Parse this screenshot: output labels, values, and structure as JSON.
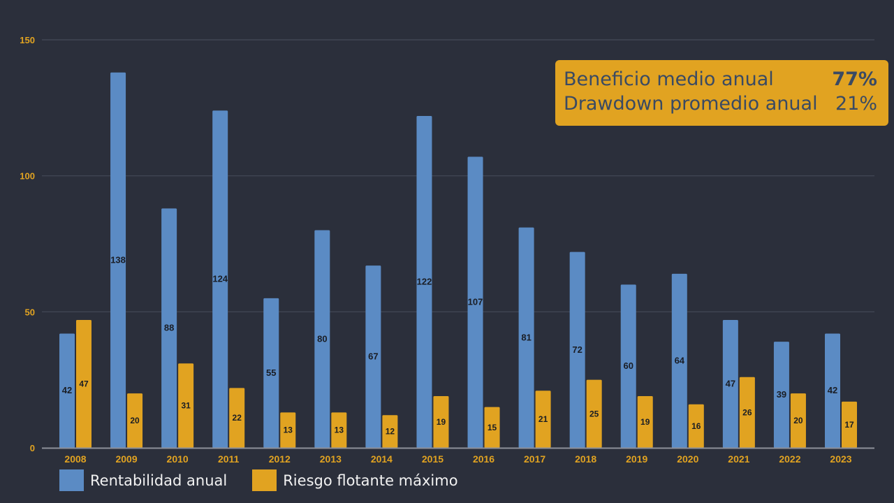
{
  "chart_data": {
    "type": "bar",
    "title": "",
    "xlabel": "",
    "ylabel": "",
    "ylim": [
      0,
      150
    ],
    "yticks": [
      0,
      50,
      100,
      150
    ],
    "grid": true,
    "legend_position": "bottom-left",
    "categories": [
      "2008",
      "2009",
      "2010",
      "2011",
      "2012",
      "2013",
      "2014",
      "2015",
      "2016",
      "2017",
      "2018",
      "2019",
      "2020",
      "2021",
      "2022",
      "2023"
    ],
    "series": [
      {
        "name": "Rentabilidad anual",
        "color": "#5b8bc4",
        "values": [
          42,
          138,
          88,
          124,
          55,
          80,
          67,
          122,
          107,
          81,
          72,
          60,
          64,
          47,
          39,
          42
        ]
      },
      {
        "name": "Riesgo flotante máximo",
        "color": "#e1a321",
        "values": [
          47,
          20,
          31,
          22,
          13,
          13,
          12,
          19,
          15,
          21,
          25,
          19,
          16,
          26,
          20,
          17
        ]
      }
    ],
    "annotation": {
      "rows": [
        {
          "label": "Beneficio medio anual",
          "value": "77%"
        },
        {
          "label": "Drawdown promedio anual",
          "value": "21%"
        }
      ]
    }
  },
  "colors": {
    "background": "#2b2f3b",
    "accent": "#e1a321",
    "primary": "#5b8bc4",
    "box_text": "#3a4a63"
  }
}
